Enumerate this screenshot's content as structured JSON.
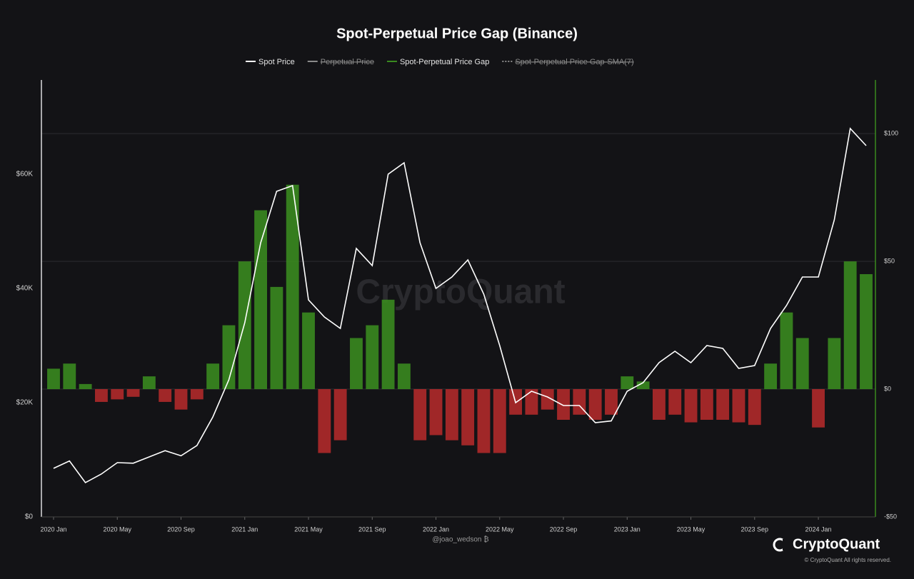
{
  "chart_data": {
    "type": "line-bar",
    "title": "Spot-Perpetual Price Gap (Binance)",
    "x": [
      "2020-01",
      "2020-02",
      "2020-03",
      "2020-04",
      "2020-05",
      "2020-06",
      "2020-07",
      "2020-08",
      "2020-09",
      "2020-10",
      "2020-11",
      "2020-12",
      "2021-01",
      "2021-02",
      "2021-03",
      "2021-04",
      "2021-05",
      "2021-06",
      "2021-07",
      "2021-08",
      "2021-09",
      "2021-10",
      "2021-11",
      "2021-12",
      "2022-01",
      "2022-02",
      "2022-03",
      "2022-04",
      "2022-05",
      "2022-06",
      "2022-07",
      "2022-08",
      "2022-09",
      "2022-10",
      "2022-11",
      "2022-12",
      "2023-01",
      "2023-02",
      "2023-03",
      "2023-04",
      "2023-05",
      "2023-06",
      "2023-07",
      "2023-08",
      "2023-09",
      "2023-10",
      "2023-11",
      "2023-12",
      "2024-01",
      "2024-02",
      "2024-03",
      "2024-04"
    ],
    "xticks": [
      {
        "value": "2020-01",
        "label": "2020 Jan"
      },
      {
        "value": "2020-05",
        "label": "2020 May"
      },
      {
        "value": "2020-09",
        "label": "2020 Sep"
      },
      {
        "value": "2021-01",
        "label": "2021 Jan"
      },
      {
        "value": "2021-05",
        "label": "2021 May"
      },
      {
        "value": "2021-09",
        "label": "2021 Sep"
      },
      {
        "value": "2022-01",
        "label": "2022 Jan"
      },
      {
        "value": "2022-05",
        "label": "2022 May"
      },
      {
        "value": "2022-09",
        "label": "2022 Sep"
      },
      {
        "value": "2023-01",
        "label": "2023 Jan"
      },
      {
        "value": "2023-05",
        "label": "2023 May"
      },
      {
        "value": "2023-09",
        "label": "2023 Sep"
      },
      {
        "value": "2024-01",
        "label": "2024 Jan"
      }
    ],
    "series": [
      {
        "name": "Spot Price",
        "color": "#ffffff",
        "values": [
          8500,
          9800,
          6000,
          7500,
          9500,
          9400,
          10500,
          11600,
          10700,
          12500,
          17500,
          24000,
          34000,
          48000,
          57000,
          58000,
          38000,
          35000,
          33000,
          47000,
          44000,
          60000,
          62000,
          48000,
          40000,
          42000,
          45000,
          39000,
          30000,
          20000,
          22000,
          21000,
          19500,
          19500,
          16500,
          16800,
          22000,
          23500,
          27000,
          29000,
          27000,
          30000,
          29500,
          26000,
          26500,
          33000,
          37000,
          42000,
          42000,
          52000,
          68000,
          65000
        ]
      },
      {
        "name": "Spot-Perpetual Price Gap",
        "color": "#3a8a1f",
        "negative_color": "#b02a2a",
        "axis": "y2",
        "values": [
          8,
          10,
          2,
          -5,
          -4,
          -3,
          5,
          -5,
          -8,
          -4,
          10,
          25,
          50,
          70,
          40,
          80,
          30,
          -25,
          -20,
          20,
          25,
          35,
          10,
          -20,
          -18,
          -20,
          -22,
          -25,
          -25,
          -10,
          -10,
          -8,
          -12,
          -10,
          -12,
          -10,
          5,
          3,
          -12,
          -10,
          -13,
          -12,
          -12,
          -13,
          -14,
          10,
          30,
          20,
          -15,
          20,
          50,
          45
        ]
      }
    ],
    "hidden_series": [
      {
        "name": "Perpetual Price",
        "color": "#8a8a8a"
      },
      {
        "name": "Spot-Perpetual Price Gap-SMA(7)",
        "color": "#8a8a8a"
      }
    ],
    "ylim": [
      0,
      76500
    ],
    "yticks": [
      {
        "value": 0,
        "label": "$0"
      },
      {
        "value": 20000,
        "label": "$20K"
      },
      {
        "value": 40000,
        "label": "$40K"
      },
      {
        "value": 60000,
        "label": "$60K"
      }
    ],
    "y2lim": [
      -50,
      121
    ],
    "y2ticks": [
      {
        "value": -50,
        "label": "-$50"
      },
      {
        "value": 0,
        "label": "$0"
      },
      {
        "value": 50,
        "label": "$50"
      },
      {
        "value": 100,
        "label": "$100"
      }
    ],
    "grid": true,
    "author": "@joao_wedson ₿",
    "watermark": "CryptoQuant",
    "brand": "CryptoQuant",
    "copyright": "© CryptoQuant All rights reserved."
  }
}
